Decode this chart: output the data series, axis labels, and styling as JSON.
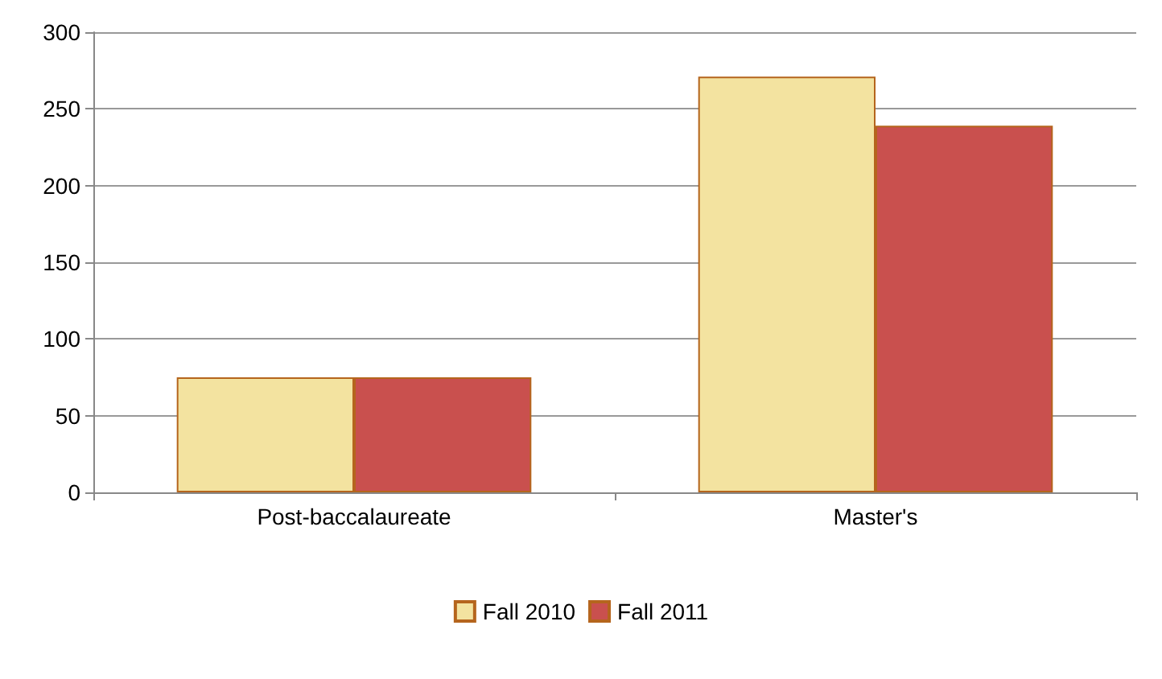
{
  "chart_data": {
    "type": "bar",
    "categories": [
      "Post-baccalaureate",
      "Master's"
    ],
    "series": [
      {
        "name": "Fall 2010",
        "color": "#f3e3a0",
        "values": [
          75,
          271
        ]
      },
      {
        "name": "Fall 2011",
        "color": "#c9504e",
        "values": [
          75,
          239
        ]
      }
    ],
    "ylim": [
      0,
      300
    ],
    "yticks": [
      0,
      50,
      100,
      150,
      200,
      250,
      300
    ],
    "grid": "y",
    "legend": "bottom"
  }
}
